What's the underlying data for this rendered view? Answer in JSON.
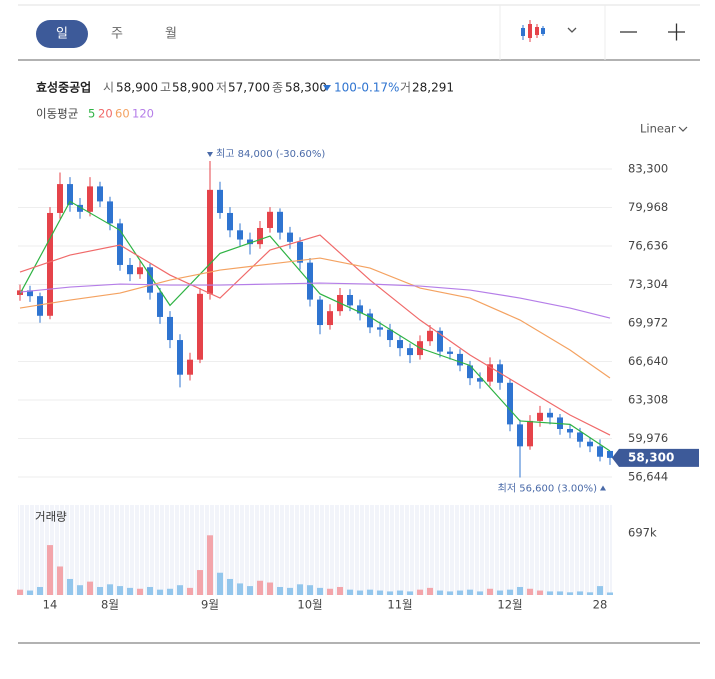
{
  "tabs": [
    "일",
    "주",
    "월"
  ],
  "quote": {
    "name": "효성중공업",
    "open_label": "시",
    "open": "58,900",
    "high_label": "고",
    "high": "58,900",
    "low_label": "저",
    "low": "57,700",
    "close_label": "종",
    "close": "58,300",
    "change": "100",
    "change_pct": "-0.17%",
    "volume_label": "거",
    "volume": "28,291"
  },
  "ma_title": "이동평균",
  "scale_mode": "Linear",
  "chart_data": {
    "type": "candlestick",
    "x": [
      0,
      1,
      2,
      3,
      4,
      5,
      6,
      7,
      8,
      9,
      10,
      11,
      12,
      13,
      14,
      15,
      16,
      17,
      18,
      19,
      20,
      21,
      22,
      23,
      24,
      25,
      26,
      27,
      28,
      29,
      30,
      31,
      32,
      33,
      34,
      35,
      36,
      37,
      38,
      39,
      40,
      41,
      42,
      43,
      44,
      45,
      46,
      47,
      48,
      49,
      50,
      51,
      52,
      53,
      54,
      55,
      56,
      57,
      58,
      59
    ],
    "open": [
      72400,
      72800,
      72300,
      70600,
      79500,
      82000,
      80200,
      79600,
      81800,
      80500,
      78600,
      75000,
      74200,
      74800,
      72600,
      70500,
      68500,
      65500,
      66800,
      72500,
      81500,
      79500,
      78000,
      77200,
      76800,
      78200,
      79600,
      77800,
      77000,
      75200,
      72000,
      69800,
      71000,
      72400,
      71500,
      70800,
      69600,
      69400,
      68500,
      67800,
      67200,
      68400,
      69300,
      67500,
      67300,
      66300,
      65200,
      64900,
      66400,
      64800,
      61200,
      59300,
      61500,
      62200,
      61800,
      60800,
      60500,
      59700,
      59300,
      58900
    ],
    "high": [
      73300,
      73200,
      72600,
      80000,
      83000,
      82600,
      80800,
      82600,
      82200,
      80900,
      79000,
      75600,
      75400,
      75100,
      73000,
      71000,
      69000,
      67400,
      73000,
      84000,
      82200,
      80000,
      78600,
      77800,
      78800,
      80000,
      79900,
      78300,
      77400,
      75600,
      72300,
      71600,
      73000,
      72900,
      72000,
      71200,
      70100,
      69900,
      68900,
      68200,
      68900,
      69800,
      69600,
      67900,
      67700,
      66700,
      65700,
      67000,
      66800,
      65100,
      61600,
      62000,
      62800,
      62600,
      62100,
      61200,
      60900,
      60100,
      59900,
      58900
    ],
    "low": [
      71900,
      71800,
      70000,
      70300,
      79000,
      79600,
      79000,
      79200,
      80000,
      78000,
      74500,
      73600,
      73800,
      72000,
      69900,
      67800,
      64400,
      65000,
      66500,
      72000,
      79000,
      77400,
      76600,
      75900,
      76400,
      77800,
      77200,
      76400,
      74600,
      71400,
      69000,
      69400,
      70600,
      71000,
      70200,
      69100,
      68800,
      67900,
      67100,
      66500,
      66800,
      68000,
      67000,
      66800,
      65800,
      64600,
      64300,
      64500,
      64200,
      60600,
      56600,
      59000,
      61000,
      61200,
      60300,
      60000,
      59200,
      58800,
      58000,
      57700
    ],
    "close": [
      72800,
      72300,
      70600,
      79500,
      82000,
      80200,
      79600,
      81800,
      80500,
      78600,
      75000,
      74200,
      74800,
      72600,
      70500,
      68500,
      65500,
      66800,
      72500,
      81500,
      79500,
      78000,
      77200,
      76800,
      78200,
      79600,
      77800,
      77000,
      75200,
      72000,
      69800,
      71000,
      72400,
      71500,
      70800,
      69600,
      69400,
      68500,
      67800,
      67200,
      68400,
      69300,
      67500,
      67300,
      66300,
      65200,
      64900,
      66400,
      64800,
      61200,
      59300,
      61500,
      62200,
      61800,
      60800,
      60500,
      59700,
      59300,
      58400,
      58300
    ],
    "volume": [
      60000,
      50000,
      90000,
      560000,
      320000,
      180000,
      110000,
      150000,
      90000,
      120000,
      100000,
      80000,
      70000,
      90000,
      60000,
      70000,
      110000,
      80000,
      280000,
      670000,
      250000,
      180000,
      130000,
      100000,
      160000,
      140000,
      90000,
      80000,
      120000,
      110000,
      80000,
      70000,
      90000,
      60000,
      50000,
      60000,
      50000,
      40000,
      50000,
      40000,
      60000,
      80000,
      50000,
      40000,
      50000,
      60000,
      40000,
      70000,
      50000,
      60000,
      90000,
      70000,
      50000,
      40000,
      40000,
      30000,
      40000,
      30000,
      100000,
      28291
    ],
    "up_color": "#e5434a",
    "down_color": "#2f74d0",
    "volume_up_color": "#f3a5aa",
    "volume_down_color": "#93c6ec",
    "ma": [
      {
        "name": "5",
        "color": "#2fb344",
        "x": [
          0,
          5,
          10,
          15,
          20,
          25,
          30,
          35,
          40,
          45,
          50,
          55,
          59
        ],
        "values": [
          72500,
          80500,
          78000,
          71500,
          76000,
          77500,
          72500,
          70500,
          67800,
          66300,
          61500,
          61200,
          58900
        ]
      },
      {
        "name": "20",
        "color": "#f06a6a",
        "x": [
          0,
          5,
          10,
          15,
          20,
          25,
          30,
          35,
          40,
          45,
          50,
          55,
          59
        ],
        "values": [
          74385,
          75857,
          76722,
          74126,
          72135,
          76290,
          77588,
          73693,
          70231,
          67202,
          64605,
          62009,
          60278
        ]
      },
      {
        "name": "60",
        "color": "#f4a261",
        "x": [
          0,
          5,
          10,
          15,
          20,
          25,
          30,
          35,
          40,
          45,
          50,
          55,
          59
        ],
        "values": [
          71270,
          71963,
          72568,
          73693,
          74559,
          75078,
          75597,
          74732,
          72996,
          72135,
          70231,
          67635,
          65211
        ]
      },
      {
        "name": "120",
        "color": "#b57ee8",
        "x": [
          0,
          5,
          10,
          15,
          20,
          25,
          30,
          35,
          40,
          45,
          50,
          55,
          59
        ],
        "values": [
          72654,
          73087,
          73347,
          73260,
          73260,
          73347,
          73433,
          73347,
          73174,
          72828,
          72135,
          71270,
          70404
        ]
      }
    ],
    "xlim": [
      -0.2,
      59.2
    ],
    "xticks": [
      {
        "value": 3,
        "label": "14"
      },
      {
        "value": 9,
        "label": "8월"
      },
      {
        "value": 19,
        "label": "9월"
      },
      {
        "value": 29,
        "label": "10월"
      },
      {
        "value": 38,
        "label": "11월"
      },
      {
        "value": 49,
        "label": "12월"
      },
      {
        "value": 58,
        "label": "28"
      }
    ],
    "ylim": [
      55520,
      84950
    ],
    "yticks": [
      {
        "value": 83300,
        "label": "83,300"
      },
      {
        "value": 79968,
        "label": "79,968"
      },
      {
        "value": 76636,
        "label": "76,636"
      },
      {
        "value": 73304,
        "label": "73,304"
      },
      {
        "value": 69972,
        "label": "69,972"
      },
      {
        "value": 66640,
        "label": "66,640"
      },
      {
        "value": 63308,
        "label": "63,308"
      },
      {
        "value": 59976,
        "label": "59,976"
      },
      {
        "value": 56644,
        "label": "56,644"
      }
    ],
    "grid": true,
    "volume_title": "거래량",
    "volume_ylim": [
      0,
      1010000
    ],
    "volume_ticks": [
      {
        "value": 697000,
        "label": "697k"
      }
    ],
    "price_tag": {
      "value": 58300,
      "label": "58,300"
    },
    "annotations": [
      {
        "x": 19,
        "value": 84000,
        "text": "최고 84,000 (-30.60%)"
      },
      {
        "x": 50,
        "value": 56600,
        "text": "최저 56,600 (3.00%)"
      }
    ]
  }
}
